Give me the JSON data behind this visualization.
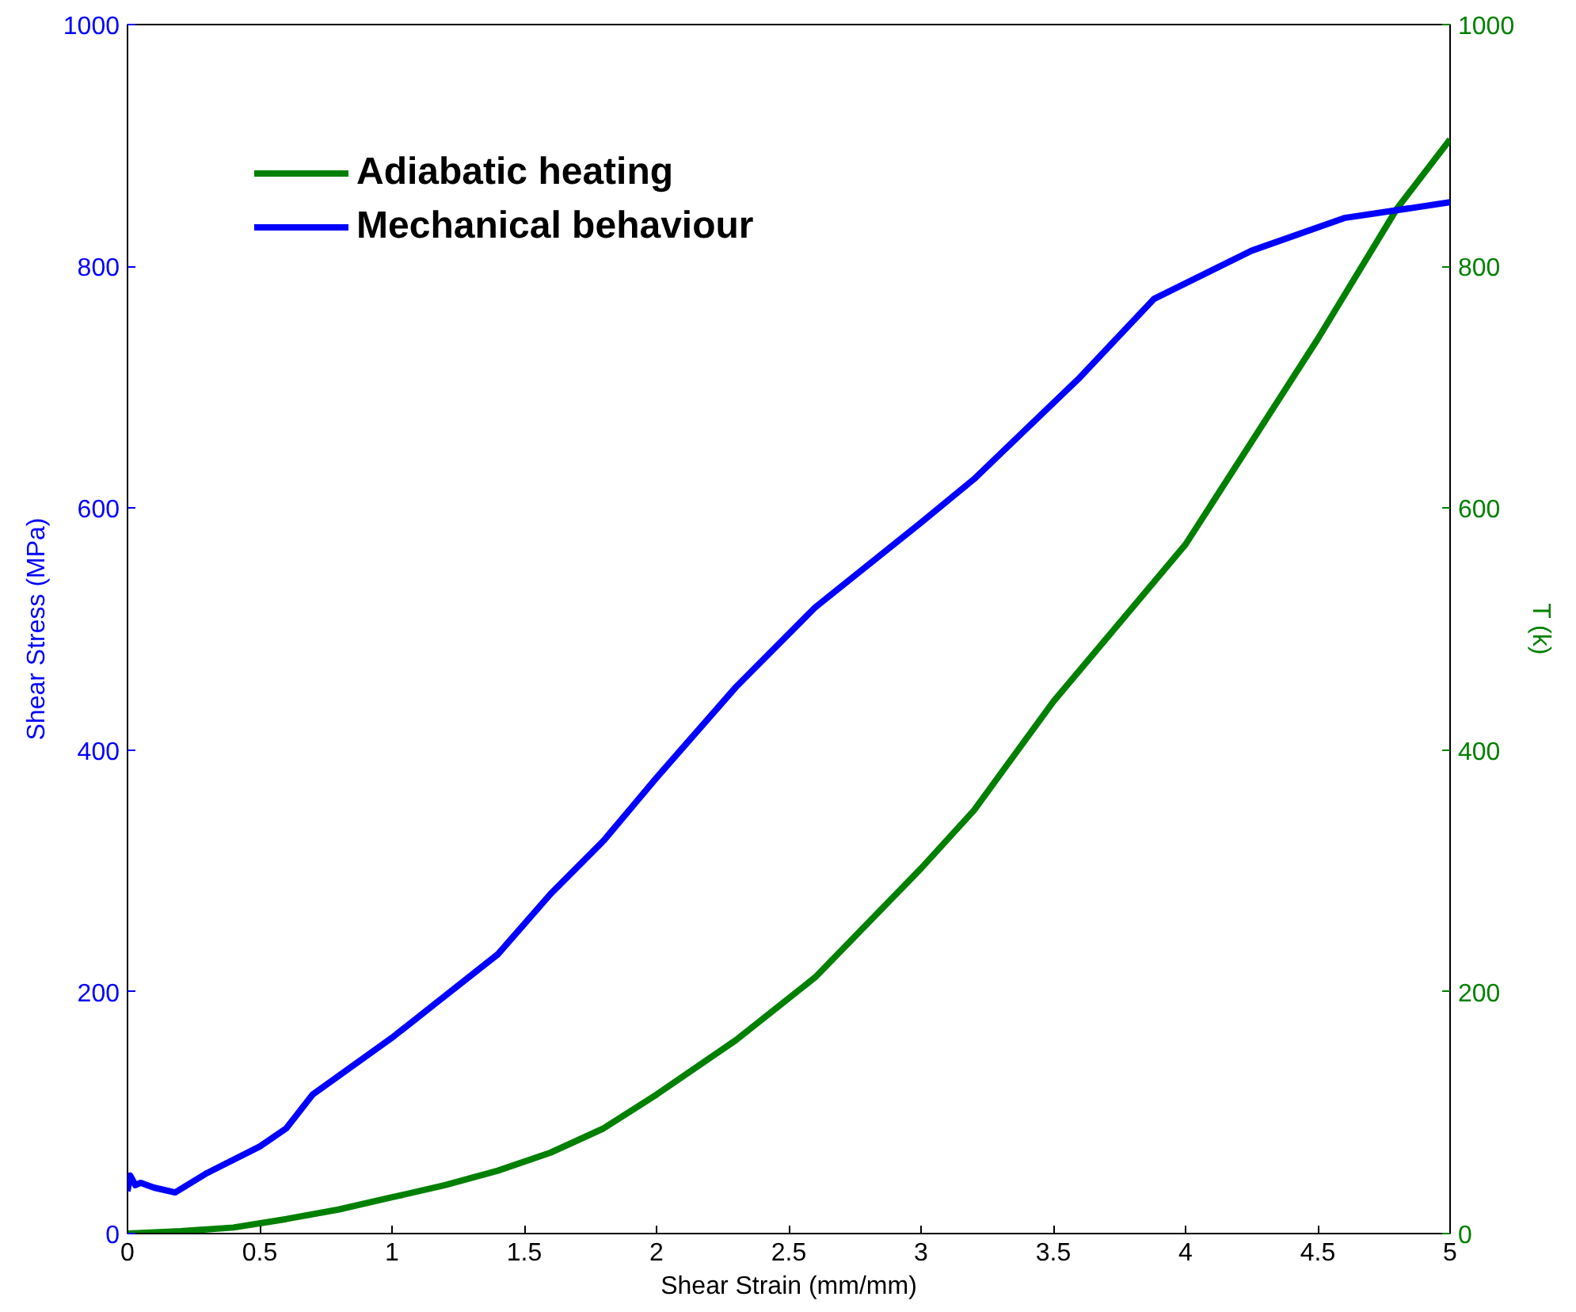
{
  "chart_data": {
    "type": "line",
    "xlabel": "Shear Strain (mm/mm)",
    "ylabel": "Shear Stress (MPa)",
    "y2label": "T (k)",
    "xlim": [
      0,
      5
    ],
    "xticks": [
      0,
      0.5,
      1,
      1.5,
      2,
      2.5,
      3,
      3.5,
      4,
      4.5,
      5
    ],
    "ylim": [
      0,
      1000
    ],
    "yticks": [
      0,
      200,
      400,
      600,
      800,
      1000
    ],
    "y2lim": [
      0,
      1000
    ],
    "y2ticks": [
      0,
      200,
      400,
      600,
      800,
      1000
    ],
    "grid": false,
    "legend": "top left",
    "line_style": "solid",
    "marker": "none",
    "series": [
      {
        "name": "Adiabatic heating",
        "color": "#008000",
        "axis": "y2",
        "x": [
          0,
          0.2,
          0.4,
          0.6,
          0.8,
          1.0,
          1.2,
          1.4,
          1.6,
          1.8,
          2.0,
          2.3,
          2.6,
          3.0,
          3.2,
          3.5,
          4.0,
          4.5,
          4.8,
          5.0
        ],
        "values": [
          0,
          2,
          5,
          12,
          20,
          30,
          40,
          52,
          67,
          87,
          115,
          160,
          212,
          302,
          350,
          440,
          570,
          740,
          848,
          905
        ]
      },
      {
        "name": "Mechanical behaviour",
        "color": "#0000ff",
        "x": [
          0,
          0.01,
          0.03,
          0.05,
          0.1,
          0.18,
          0.3,
          0.5,
          0.6,
          0.7,
          1.0,
          1.4,
          1.6,
          1.8,
          2.0,
          2.3,
          2.6,
          3.0,
          3.2,
          3.6,
          3.88,
          4.25,
          4.6,
          5.0
        ],
        "values": [
          35,
          48,
          40,
          42,
          38,
          34,
          50,
          72,
          87,
          115,
          162,
          231,
          281,
          325,
          377,
          452,
          518,
          588,
          624,
          708,
          773,
          813,
          840,
          853
        ]
      }
    ]
  }
}
